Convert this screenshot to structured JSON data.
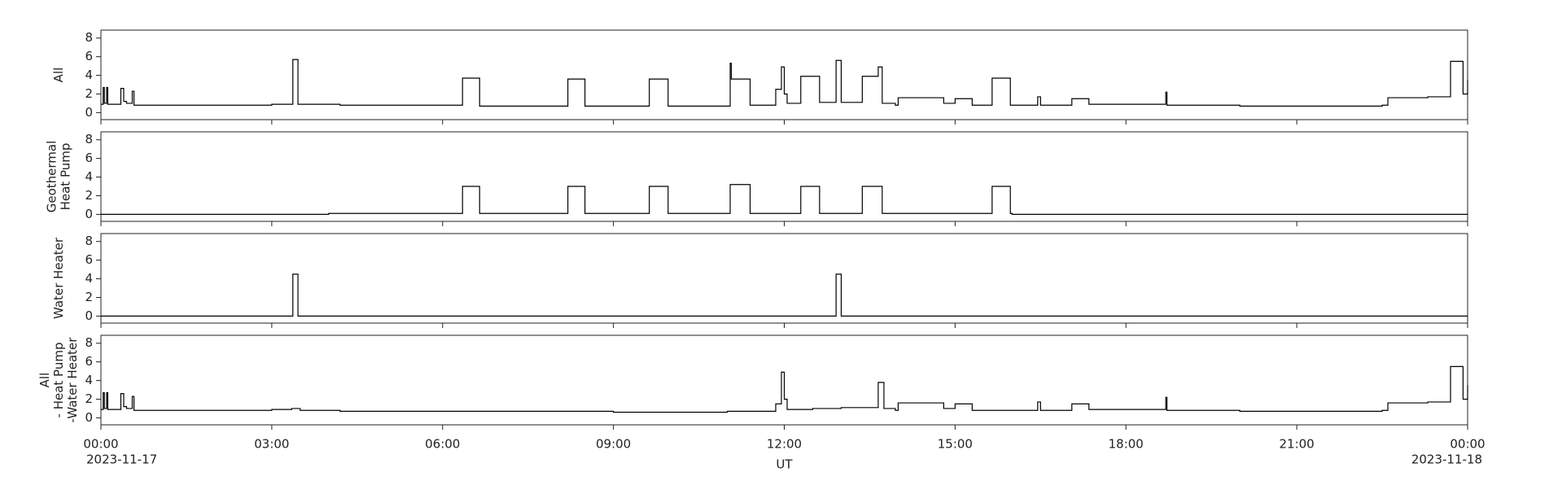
{
  "chart_data": [
    {
      "type": "line",
      "drawstyle": "steps-post",
      "ylabel": [
        "All"
      ],
      "color": "#000000",
      "x": [
        0,
        0.04,
        0.06,
        0.1,
        0.12,
        0.35,
        0.4,
        0.45,
        0.55,
        0.58,
        3.0,
        3.37,
        3.46,
        4.2,
        6.35,
        6.65,
        8.2,
        8.5,
        9.63,
        9.96,
        11.05,
        11.07,
        11.4,
        11.85,
        11.95,
        12.0,
        12.05,
        12.29,
        12.62,
        12.91,
        13.0,
        13.37,
        13.65,
        13.72,
        13.95,
        14.0,
        14.8,
        15.0,
        15.3,
        15.65,
        15.97,
        16.45,
        16.5,
        17.05,
        17.35,
        18.7,
        18.72,
        20.0,
        22.5,
        22.6,
        23.3,
        23.7,
        23.92,
        24
      ],
      "values": [
        0.9,
        2.7,
        1.0,
        2.7,
        0.9,
        2.6,
        1.2,
        1.0,
        2.3,
        0.8,
        0.9,
        5.7,
        0.9,
        0.8,
        3.7,
        0.7,
        3.6,
        0.7,
        3.6,
        0.7,
        5.3,
        3.6,
        0.8,
        2.5,
        4.9,
        2.0,
        1.0,
        3.9,
        1.1,
        5.6,
        1.1,
        3.9,
        4.9,
        1.0,
        0.8,
        1.6,
        1.0,
        1.5,
        0.8,
        3.7,
        0.8,
        1.7,
        0.8,
        1.5,
        0.9,
        2.2,
        0.8,
        0.7,
        0.8,
        1.6,
        1.7,
        5.5,
        2.0,
        3.5
      ],
      "xlim": [
        0,
        24
      ],
      "xticks": [
        0,
        3,
        6,
        9,
        12,
        15,
        18,
        21,
        24
      ],
      "ylim": [
        -0.75,
        8.85
      ],
      "yticks": [
        0,
        2,
        4,
        6,
        8
      ]
    },
    {
      "type": "line",
      "drawstyle": "steps-post",
      "ylabel": [
        "Geothermal",
        "Heat Pump"
      ],
      "color": "#000000",
      "x": [
        0,
        4.0,
        6.35,
        6.65,
        8.2,
        8.5,
        9.63,
        9.96,
        11.05,
        11.4,
        12.29,
        12.62,
        13.37,
        13.72,
        15.65,
        15.97,
        16.0,
        24
      ],
      "values": [
        0,
        0.1,
        3.0,
        0.1,
        3.0,
        0.1,
        3.0,
        0.1,
        3.2,
        0.1,
        3.0,
        0.1,
        3.0,
        0.1,
        3.0,
        0.1,
        0,
        0
      ],
      "xlim": [
        0,
        24
      ],
      "xticks": [
        0,
        3,
        6,
        9,
        12,
        15,
        18,
        21,
        24
      ],
      "ylim": [
        -0.75,
        8.85
      ],
      "yticks": [
        0,
        2,
        4,
        6,
        8
      ]
    },
    {
      "type": "line",
      "drawstyle": "steps-post",
      "ylabel": [
        "Water Heater"
      ],
      "color": "#000000",
      "x": [
        0,
        3.37,
        3.46,
        12.91,
        13.0,
        24
      ],
      "values": [
        0,
        4.5,
        0,
        4.5,
        0,
        0
      ],
      "xlim": [
        0,
        24
      ],
      "xticks": [
        0,
        3,
        6,
        9,
        12,
        15,
        18,
        21,
        24
      ],
      "ylim": [
        -0.75,
        8.85
      ],
      "yticks": [
        0,
        2,
        4,
        6,
        8
      ]
    },
    {
      "type": "line",
      "drawstyle": "steps-post",
      "ylabel": [
        "All",
        "- Heat Pump",
        "-Water Heater"
      ],
      "color": "#000000",
      "x": [
        0,
        0.04,
        0.06,
        0.1,
        0.12,
        0.35,
        0.4,
        0.45,
        0.55,
        0.58,
        3.0,
        3.35,
        3.5,
        4.2,
        6.0,
        9.0,
        11.0,
        11.85,
        11.95,
        12.0,
        12.05,
        12.5,
        13.0,
        13.65,
        13.75,
        13.95,
        14.0,
        14.8,
        15.0,
        15.3,
        16.45,
        16.5,
        17.05,
        17.35,
        18.7,
        18.72,
        20.0,
        22.5,
        22.6,
        23.3,
        23.7,
        23.92,
        24
      ],
      "values": [
        0.9,
        2.7,
        1.0,
        2.7,
        0.9,
        2.6,
        1.2,
        1.0,
        2.3,
        0.8,
        0.9,
        1.0,
        0.8,
        0.7,
        0.7,
        0.6,
        0.7,
        1.5,
        4.9,
        2.0,
        0.9,
        1.0,
        1.1,
        3.8,
        1.0,
        0.8,
        1.6,
        1.0,
        1.5,
        0.8,
        1.7,
        0.8,
        1.5,
        0.9,
        2.2,
        0.8,
        0.7,
        0.8,
        1.6,
        1.7,
        5.5,
        2.0,
        3.5
      ],
      "xlim": [
        0,
        24
      ],
      "ylim": [
        -0.75,
        8.85
      ],
      "yticks": [
        0,
        2,
        4,
        6,
        8
      ],
      "xlabel": "UT",
      "xticks": [
        {
          "value": 0,
          "label": "00:00",
          "date": "2023-11-17"
        },
        {
          "value": 3,
          "label": "03:00"
        },
        {
          "value": 6,
          "label": "06:00"
        },
        {
          "value": 9,
          "label": "09:00"
        },
        {
          "value": 12,
          "label": "12:00"
        },
        {
          "value": 15,
          "label": "15:00"
        },
        {
          "value": 18,
          "label": "18:00"
        },
        {
          "value": 21,
          "label": "21:00"
        },
        {
          "value": 24,
          "label": "00:00",
          "date": "2023-11-18"
        }
      ]
    }
  ]
}
